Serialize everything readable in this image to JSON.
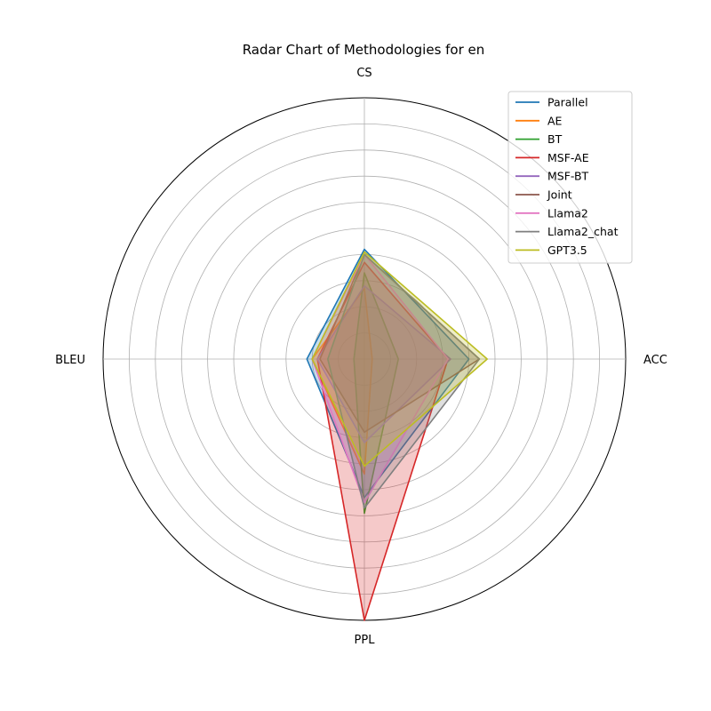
{
  "chart_data": {
    "type": "radar",
    "title": "Radar Chart of Methodologies for en",
    "axes": [
      "CS",
      "ACC",
      "PPL",
      "BLEU"
    ],
    "rmax": 100,
    "rings": [
      10,
      20,
      30,
      40,
      50,
      60,
      70,
      80,
      90,
      100
    ],
    "grid": true,
    "legend_position": "top-right",
    "series": [
      {
        "name": "Parallel",
        "color": "#1f77b4",
        "values": [
          42,
          40,
          53,
          22
        ]
      },
      {
        "name": "AE",
        "color": "#ff7f0e",
        "values": [
          27,
          3,
          44,
          20
        ]
      },
      {
        "name": "BT",
        "color": "#2ca02c",
        "values": [
          33,
          13,
          59,
          4
        ]
      },
      {
        "name": "MSF-AE",
        "color": "#d62728",
        "values": [
          37,
          32,
          100,
          18
        ]
      },
      {
        "name": "MSF-BT",
        "color": "#9467bd",
        "values": [
          28,
          33,
          32,
          18
        ]
      },
      {
        "name": "Joint",
        "color": "#8c564b",
        "values": [
          40,
          44,
          28,
          17
        ]
      },
      {
        "name": "Llama2",
        "color": "#e377c2",
        "values": [
          40,
          32,
          55,
          20
        ]
      },
      {
        "name": "Llama2_chat",
        "color": "#7f7f7f",
        "values": [
          40,
          44,
          57,
          14
        ]
      },
      {
        "name": "GPT3.5",
        "color": "#bcbd22",
        "values": [
          41,
          47,
          41,
          20
        ]
      }
    ]
  }
}
